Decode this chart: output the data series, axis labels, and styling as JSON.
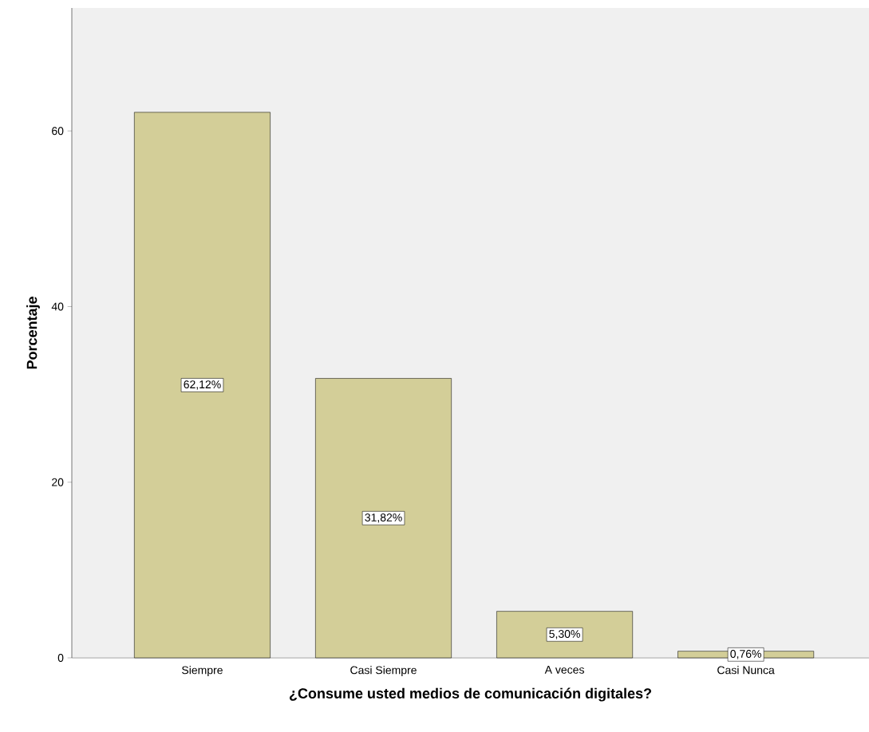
{
  "chart_data": {
    "type": "bar",
    "xlabel": "¿Consume usted medios de comunicación digitales?",
    "ylabel": "Porcentaje",
    "categories": [
      "Siempre",
      "Casi Siempre",
      "A veces",
      "Casi Nunca"
    ],
    "values": [
      62.12,
      31.82,
      5.3,
      0.76
    ],
    "value_labels": [
      "62,12%",
      "31,82%",
      "5,30%",
      "0,76%"
    ],
    "color": "#d3ce98",
    "ylim": [
      0,
      74
    ],
    "yticks": [
      0,
      20,
      40,
      60
    ],
    "grid": false
  }
}
